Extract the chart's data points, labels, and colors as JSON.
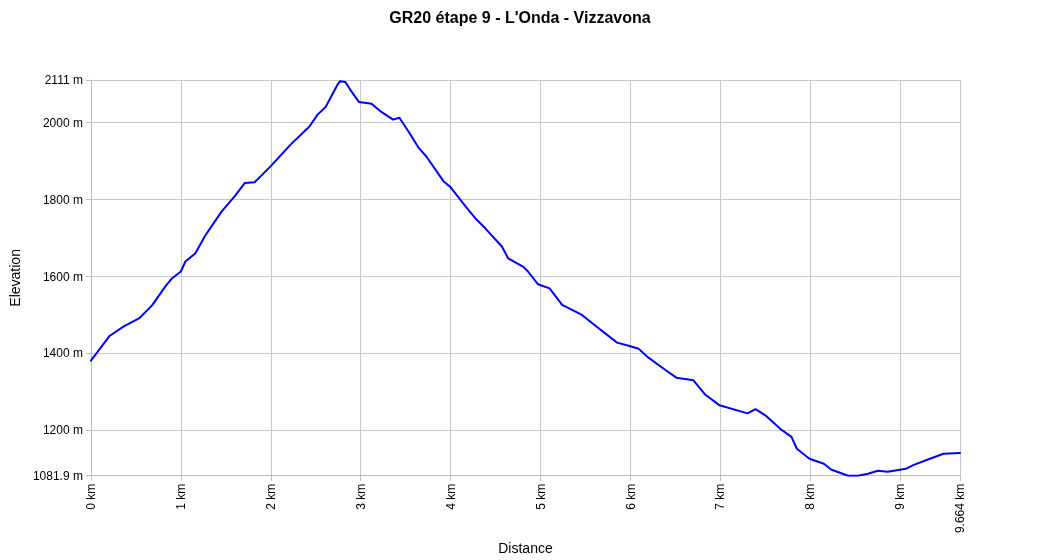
{
  "chart_data": {
    "type": "line",
    "title": "GR20 étape 9 - L'Onda - Vizzavona",
    "xlabel": "Distance",
    "ylabel": "Elevation",
    "x": [
      0,
      0.21,
      0.37,
      0.54,
      0.68,
      0.83,
      0.9,
      1.0,
      1.05,
      1.16,
      1.27,
      1.45,
      1.6,
      1.71,
      1.82,
      2.0,
      2.22,
      2.43,
      2.52,
      2.61,
      2.74,
      2.77,
      2.83,
      2.9,
      2.98,
      3.12,
      3.23,
      3.36,
      3.43,
      3.54,
      3.64,
      3.73,
      3.92,
      4.0,
      4.17,
      4.28,
      4.39,
      4.57,
      4.64,
      4.81,
      4.86,
      4.97,
      5.1,
      5.24,
      5.46,
      5.6,
      5.85,
      5.98,
      6.09,
      6.2,
      6.4,
      6.51,
      6.7,
      6.83,
      6.99,
      7.3,
      7.39,
      7.5,
      7.68,
      7.79,
      7.85,
      7.99,
      8.15,
      8.23,
      8.42,
      8.53,
      8.64,
      8.75,
      8.86,
      9.06,
      9.15,
      9.33,
      9.48,
      9.664
    ],
    "series": [
      {
        "color": "#0000ff",
        "values": [
          1381,
          1446,
          1471,
          1492,
          1525,
          1575,
          1595,
          1613,
          1639,
          1660,
          1706,
          1768,
          1809,
          1843,
          1845,
          1887,
          1943,
          1990,
          2021,
          2041,
          2098,
          2108,
          2106,
          2080,
          2054,
          2049,
          2028,
          2008,
          2013,
          1974,
          1936,
          1912,
          1848,
          1832,
          1781,
          1750,
          1724,
          1678,
          1647,
          1625,
          1613,
          1580,
          1569,
          1526,
          1500,
          1474,
          1428,
          1420,
          1412,
          1389,
          1355,
          1337,
          1330,
          1293,
          1265,
          1244,
          1255,
          1239,
          1201,
          1183,
          1152,
          1126,
          1113,
          1098,
          1082,
          1082,
          1087,
          1095,
          1092,
          1100,
          1110,
          1126,
          1139,
          1141
        ]
      }
    ],
    "xlim": [
      0,
      9.664
    ],
    "xticks": [
      {
        "value": 0,
        "label": "0 km"
      },
      {
        "value": 1,
        "label": "1 km"
      },
      {
        "value": 2,
        "label": "2 km"
      },
      {
        "value": 3,
        "label": "3 km"
      },
      {
        "value": 4,
        "label": "4 km"
      },
      {
        "value": 5,
        "label": "5 km"
      },
      {
        "value": 6,
        "label": "6 km"
      },
      {
        "value": 7,
        "label": "7 km"
      },
      {
        "value": 8,
        "label": "8 km"
      },
      {
        "value": 9,
        "label": "9 km"
      },
      {
        "value": 9.664,
        "label": "9.664 km"
      }
    ],
    "ylim": [
      1081.9,
      2111
    ],
    "yticks": [
      {
        "value": 1081.9,
        "label": "1081.9 m"
      },
      {
        "value": 1200,
        "label": "1200 m"
      },
      {
        "value": 1400,
        "label": "1400 m"
      },
      {
        "value": 1600,
        "label": "1600 m"
      },
      {
        "value": 1800,
        "label": "1800 m"
      },
      {
        "value": 2000,
        "label": "2000 m"
      },
      {
        "value": 2111,
        "label": "2111 m"
      }
    ],
    "grid": true,
    "marker": "none",
    "line_style": "solid"
  }
}
